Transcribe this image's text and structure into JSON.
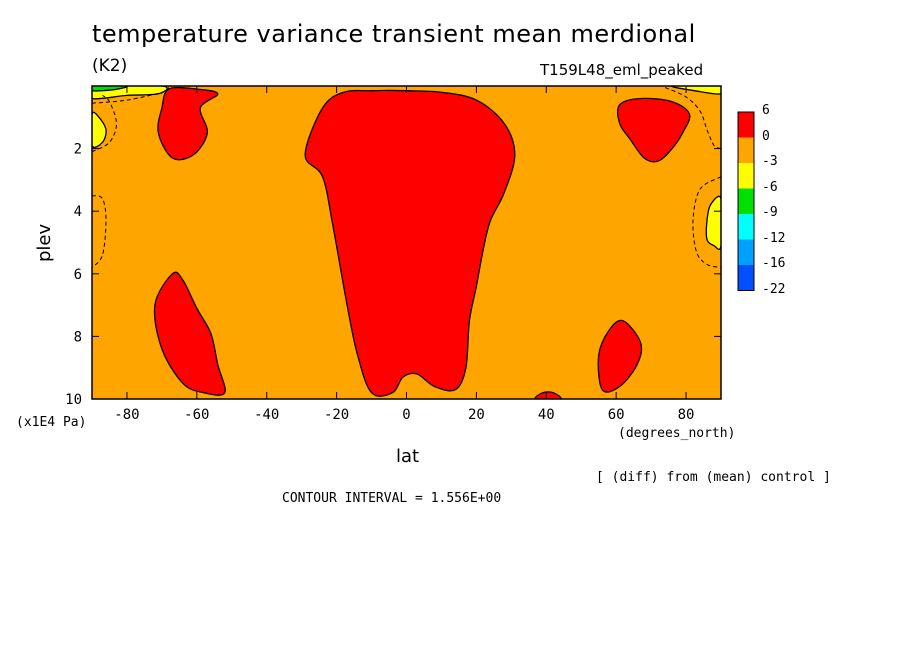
{
  "chart_data": {
    "type": "heatmap",
    "title": "temperature variance transient mean merdional",
    "units_label": "(K2)",
    "experiment_label": "T159L48_eml_peaked",
    "xlabel": "lat",
    "x_units": "(degrees_north)",
    "ylabel": "plev",
    "y_units": "(x1E4 Pa)",
    "xlim": [
      -90,
      90
    ],
    "ylim": [
      10,
      0
    ],
    "x_ticks": [
      -80,
      -60,
      -40,
      -20,
      0,
      20,
      40,
      60,
      80
    ],
    "y_ticks": [
      2,
      4,
      6,
      8,
      10
    ],
    "legend": {
      "levels": [
        "6",
        "0",
        "-3",
        "-6",
        "-9",
        "-12",
        "-16",
        "-22"
      ],
      "colors": [
        "#ff0000",
        "#ffa500",
        "#ffff00",
        "#00e000",
        "#00ffff",
        "#00a0ff",
        "#0050ff"
      ]
    },
    "footnote": "[ (diff) from (mean) control ]",
    "contour_interval": "CONTOUR INTERVAL = 1.556E+00",
    "background_color": "#ffa500",
    "regions": [
      {
        "name": "tropical-core",
        "value_range": "0 to 6",
        "color": "#ff0000",
        "outline": [
          [
            -29,
            2.2
          ],
          [
            -24,
            0.7
          ],
          [
            -18,
            0.2
          ],
          [
            -10,
            0.15
          ],
          [
            0,
            0.15
          ],
          [
            10,
            0.2
          ],
          [
            20,
            0.45
          ],
          [
            28,
            1.2
          ],
          [
            31,
            2.2
          ],
          [
            28,
            3.4
          ],
          [
            24,
            4.3
          ],
          [
            22,
            5.2
          ],
          [
            20,
            6.4
          ],
          [
            18,
            7.5
          ],
          [
            17,
            9.0
          ],
          [
            14,
            9.7
          ],
          [
            8,
            9.6
          ],
          [
            3,
            9.2
          ],
          [
            -1,
            9.3
          ],
          [
            -4,
            9.8
          ],
          [
            -10,
            9.8
          ],
          [
            -14,
            8.6
          ],
          [
            -17,
            7.0
          ],
          [
            -21,
            4.5
          ],
          [
            -24,
            2.9
          ]
        ]
      },
      {
        "name": "sh-upper-blob",
        "value_range": "0 to 6",
        "color": "#ff0000",
        "outline": [
          [
            -71,
            1.5
          ],
          [
            -70,
            0.7
          ],
          [
            -68,
            0.1
          ],
          [
            -60,
            0.1
          ],
          [
            -54,
            0.25
          ],
          [
            -59,
            0.7
          ],
          [
            -57,
            1.5
          ],
          [
            -61,
            2.2
          ],
          [
            -67,
            2.3
          ]
        ]
      },
      {
        "name": "sh-lower-blob",
        "value_range": "0 to 6",
        "color": "#ff0000",
        "outline": [
          [
            -72,
            7.0
          ],
          [
            -67,
            6.0
          ],
          [
            -64,
            6.2
          ],
          [
            -60,
            7.1
          ],
          [
            -56,
            7.9
          ],
          [
            -54,
            8.9
          ],
          [
            -52,
            9.8
          ],
          [
            -58,
            9.8
          ],
          [
            -64,
            9.5
          ],
          [
            -70,
            8.4
          ]
        ]
      },
      {
        "name": "nh-upper-blob",
        "value_range": "0 to 6",
        "color": "#ff0000",
        "outline": [
          [
            61,
            0.6
          ],
          [
            67,
            0.4
          ],
          [
            76,
            0.5
          ],
          [
            81,
            0.9
          ],
          [
            79,
            1.5
          ],
          [
            76,
            2.0
          ],
          [
            72,
            2.4
          ],
          [
            68,
            2.3
          ],
          [
            64,
            1.7
          ],
          [
            61,
            1.2
          ]
        ]
      },
      {
        "name": "nh-lower-blob",
        "value_range": "0 to 6",
        "color": "#ff0000",
        "outline": [
          [
            55,
            8.6
          ],
          [
            58,
            7.8
          ],
          [
            62,
            7.5
          ],
          [
            67,
            8.2
          ],
          [
            66,
            8.9
          ],
          [
            61,
            9.6
          ],
          [
            56,
            9.7
          ]
        ]
      },
      {
        "name": "nh-surface-blob",
        "value_range": "0 to 6",
        "color": "#ff0000",
        "outline": [
          [
            37,
            10.0
          ],
          [
            39,
            9.8
          ],
          [
            42,
            9.8
          ],
          [
            44,
            10.0
          ]
        ]
      },
      {
        "name": "sh-polar-surface-yellow",
        "value_range": "-6 to -3",
        "color": "#ffff00",
        "outline": [
          [
            -90,
            0.9
          ],
          [
            -88,
            1.0
          ],
          [
            -86,
            1.4
          ],
          [
            -87,
            1.8
          ],
          [
            -90,
            1.9
          ]
        ]
      },
      {
        "name": "nh-polar-yellow",
        "value_range": "-6 to -3",
        "color": "#ffff00",
        "outline": [
          [
            90,
            3.6
          ],
          [
            87,
            3.8
          ],
          [
            86,
            4.3
          ],
          [
            86,
            4.9
          ],
          [
            88,
            5.1
          ],
          [
            90,
            5.1
          ]
        ]
      },
      {
        "name": "top-band-yellow",
        "value_range": "-6 to -3",
        "color": "#ffff00",
        "outline": [
          [
            -90,
            0
          ],
          [
            -70,
            0
          ],
          [
            -71,
            0.25
          ],
          [
            -80,
            0.3
          ],
          [
            -90,
            0.4
          ]
        ]
      },
      {
        "name": "top-band-green",
        "value_range": "-9 to -6",
        "color": "#00e000",
        "outline": [
          [
            -90,
            0
          ],
          [
            -80,
            0
          ],
          [
            -84,
            0.12
          ],
          [
            -90,
            0.15
          ]
        ]
      },
      {
        "name": "top-right-yellow",
        "value_range": "-6 to -3",
        "color": "#ffff00",
        "outline": [
          [
            76,
            0
          ],
          [
            90,
            0
          ],
          [
            90,
            0.25
          ],
          [
            84,
            0.18
          ]
        ]
      }
    ],
    "dashed_contours": [
      [
        [
          -90,
          2.1
        ],
        [
          -85,
          1.8
        ],
        [
          -83,
          1.2
        ],
        [
          -85,
          0.5
        ],
        [
          -87,
          0.3
        ]
      ],
      [
        [
          -90,
          3.5
        ],
        [
          -87,
          3.6
        ],
        [
          -86,
          4.3
        ],
        [
          -87,
          5.4
        ],
        [
          -90,
          5.8
        ]
      ],
      [
        [
          90,
          2.9
        ],
        [
          84,
          3.3
        ],
        [
          82,
          4.3
        ],
        [
          83,
          5.3
        ],
        [
          86,
          5.7
        ],
        [
          90,
          5.8
        ]
      ],
      [
        [
          -90,
          0.55
        ],
        [
          -80,
          0.45
        ],
        [
          -70,
          0.2
        ],
        [
          -68,
          0.05
        ]
      ],
      [
        [
          74,
          0.05
        ],
        [
          80,
          0.35
        ],
        [
          84,
          0.8
        ],
        [
          86,
          1.4
        ],
        [
          88,
          1.9
        ],
        [
          90,
          2.0
        ]
      ]
    ]
  }
}
